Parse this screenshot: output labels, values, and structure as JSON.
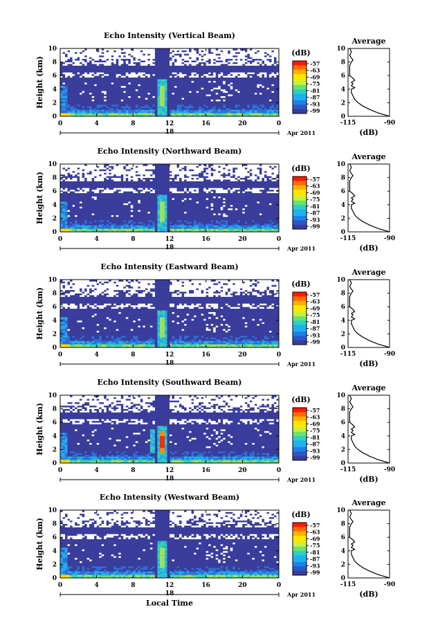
{
  "chart_data": {
    "type": "heatmap",
    "x_ticks": [
      "0",
      "4",
      "8",
      "12",
      "16",
      "20",
      "0"
    ],
    "y_ticks": [
      "0",
      "2",
      "4",
      "6",
      "8",
      "10"
    ],
    "ylabel": "Height (km)",
    "xlabel": "Local Time",
    "date_label": "18",
    "month_label": "Apr 2011",
    "ylim": [
      0,
      10
    ],
    "xlim": [
      0,
      24
    ],
    "colorbar": {
      "unit": "(dB)",
      "labels": [
        "-57",
        "-63",
        "-69",
        "-75",
        "-81",
        "-87",
        "-93",
        "-99"
      ],
      "colors": [
        "#ff2a00",
        "#ff8c00",
        "#ffd800",
        "#9be15a",
        "#33d1b0",
        "#22aaee",
        "#2d6fd8",
        "#3a3d9b"
      ]
    },
    "average": {
      "title": "Average",
      "xlabel": "(dB)",
      "x_ticks": [
        "-115",
        "-90"
      ],
      "y_ticks": [
        "0",
        "2",
        "4",
        "6",
        "8",
        "10"
      ],
      "xlim": [
        -115,
        -90
      ],
      "height_km": [
        0,
        0.5,
        1,
        1.5,
        2,
        2.5,
        3,
        3.5,
        4,
        4.2,
        4.5,
        4.8,
        5,
        5.3,
        5.6,
        6,
        6.5,
        7,
        7.5,
        8,
        8.3,
        8.6,
        9,
        9.5,
        10
      ],
      "db": [
        -90,
        -97,
        -102,
        -106,
        -109,
        -111,
        -112,
        -113,
        -113,
        -111,
        -113,
        -112,
        -113,
        -111,
        -112,
        -114,
        -114,
        -114,
        -114,
        -113,
        -112,
        -113,
        -114,
        -113,
        -114
      ]
    },
    "panels": [
      {
        "title": "Echo Intensity (Vertical Beam)",
        "top_km": 7.6,
        "strong_core": false
      },
      {
        "title": "Echo Intensity (Northward Beam)",
        "top_km": 7.6,
        "strong_core": false
      },
      {
        "title": "Echo Intensity (Eastward Beam)",
        "top_km": 7.6,
        "strong_core": false
      },
      {
        "title": "Echo Intensity (Southward Beam)",
        "top_km": 7.6,
        "strong_core": true
      },
      {
        "title": "Echo Intensity (Westward Beam)",
        "top_km": 7.6,
        "strong_core": false
      }
    ]
  }
}
